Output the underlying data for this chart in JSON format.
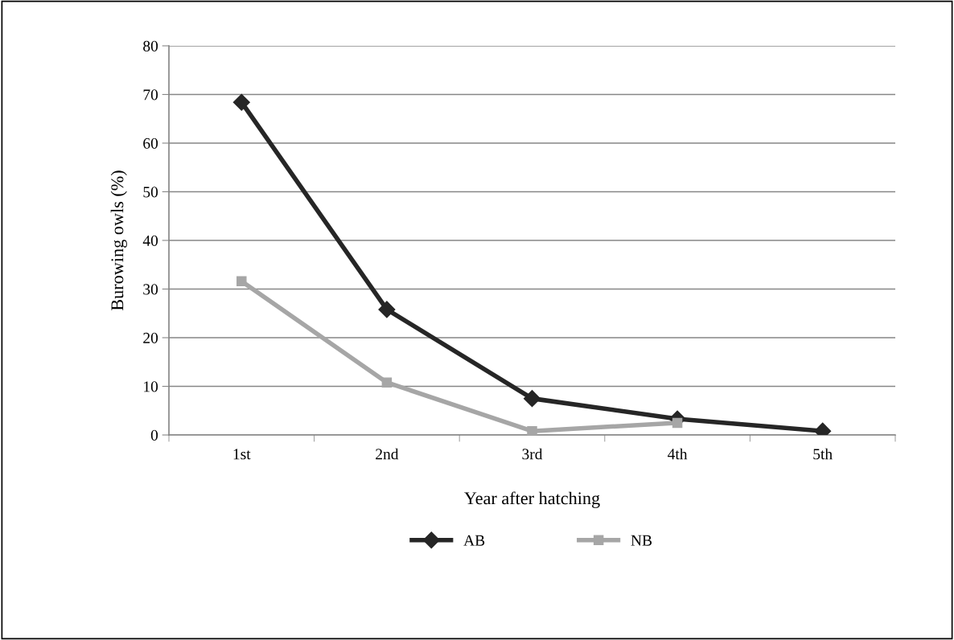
{
  "chart_data": {
    "type": "line",
    "xlabel": "Year after hatching",
    "ylabel": "Burowing owls (%)",
    "categories": [
      "1st",
      "2nd",
      "3rd",
      "4th",
      "5th"
    ],
    "series": [
      {
        "name": "AB",
        "color": "#262626",
        "marker": "diamond",
        "values": [
          68.4,
          25.8,
          7.5,
          3.3,
          0.8
        ]
      },
      {
        "name": "NB",
        "color": "#a6a6a6",
        "marker": "square",
        "values": [
          31.6,
          10.8,
          0.8,
          2.5,
          null
        ]
      }
    ],
    "ylim": [
      0,
      80
    ],
    "yticks": [
      0,
      10,
      20,
      30,
      40,
      50,
      60,
      70,
      80
    ],
    "grid": "y",
    "legend": "bottom",
    "line_style": "solid"
  }
}
